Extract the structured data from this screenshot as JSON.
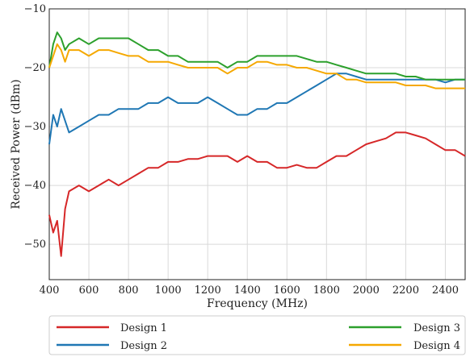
{
  "chart_data": {
    "type": "line",
    "xlabel": "Frequency (MHz)",
    "ylabel": "Received Power (dBm)",
    "xlim": [
      400,
      2500
    ],
    "ylim": [
      -56,
      -10
    ],
    "x_ticks": [
      400,
      600,
      800,
      1000,
      1200,
      1400,
      1600,
      1800,
      2000,
      2200,
      2400
    ],
    "y_ticks": [
      -50,
      -40,
      -30,
      -20,
      -10
    ],
    "y_tick_labels": [
      "−50",
      "−40",
      "−30",
      "−20",
      "−10"
    ],
    "grid": true,
    "legend_position": "bottom",
    "series": [
      {
        "name": "Design 1",
        "color": "#d62728",
        "x": [
          400,
          420,
          440,
          460,
          480,
          500,
          550,
          600,
          650,
          700,
          750,
          800,
          850,
          900,
          950,
          1000,
          1050,
          1100,
          1150,
          1200,
          1250,
          1300,
          1350,
          1400,
          1450,
          1500,
          1550,
          1600,
          1650,
          1700,
          1750,
          1800,
          1850,
          1900,
          1950,
          2000,
          2050,
          2100,
          2150,
          2200,
          2250,
          2300,
          2350,
          2400,
          2450,
          2500
        ],
        "values": [
          -45,
          -48,
          -46,
          -52,
          -44,
          -41,
          -40,
          -41,
          -40,
          -39,
          -40,
          -39,
          -38,
          -37,
          -37,
          -36,
          -36,
          -35.5,
          -35.5,
          -35,
          -35,
          -35,
          -36,
          -35,
          -36,
          -36,
          -37,
          -37,
          -36.5,
          -37,
          -37,
          -36,
          -35,
          -35,
          -34,
          -33,
          -32.5,
          -32,
          -31,
          -31,
          -31.5,
          -32,
          -33,
          -34,
          -34,
          -35
        ]
      },
      {
        "name": "Design 2",
        "color": "#1f77b4",
        "x": [
          400,
          420,
          440,
          460,
          480,
          500,
          550,
          600,
          650,
          700,
          750,
          800,
          850,
          900,
          950,
          1000,
          1050,
          1100,
          1150,
          1200,
          1250,
          1300,
          1350,
          1400,
          1450,
          1500,
          1550,
          1600,
          1650,
          1700,
          1750,
          1800,
          1850,
          1900,
          1950,
          2000,
          2050,
          2100,
          2150,
          2200,
          2250,
          2300,
          2350,
          2400,
          2450,
          2500
        ],
        "values": [
          -33,
          -28,
          -30,
          -27,
          -29,
          -31,
          -30,
          -29,
          -28,
          -28,
          -27,
          -27,
          -27,
          -26,
          -26,
          -25,
          -26,
          -26,
          -26,
          -25,
          -26,
          -27,
          -28,
          -28,
          -27,
          -27,
          -26,
          -26,
          -25,
          -24,
          -23,
          -22,
          -21,
          -21,
          -21.5,
          -22,
          -22,
          -22,
          -22,
          -22,
          -22,
          -22,
          -22,
          -22.5,
          -22,
          -22
        ]
      },
      {
        "name": "Design 3",
        "color": "#2ca02c",
        "x": [
          400,
          420,
          440,
          460,
          480,
          500,
          550,
          600,
          650,
          700,
          750,
          800,
          850,
          900,
          950,
          1000,
          1050,
          1100,
          1150,
          1200,
          1250,
          1300,
          1350,
          1400,
          1450,
          1500,
          1550,
          1600,
          1650,
          1700,
          1750,
          1800,
          1850,
          1900,
          1950,
          2000,
          2050,
          2100,
          2150,
          2200,
          2250,
          2300,
          2350,
          2400,
          2450,
          2500
        ],
        "values": [
          -20,
          -16,
          -14,
          -15,
          -17,
          -16,
          -15,
          -16,
          -15,
          -15,
          -15,
          -15,
          -16,
          -17,
          -17,
          -18,
          -18,
          -19,
          -19,
          -19,
          -19,
          -20,
          -19,
          -19,
          -18,
          -18,
          -18,
          -18,
          -18,
          -18.5,
          -19,
          -19,
          -19.5,
          -20,
          -20.5,
          -21,
          -21,
          -21,
          -21,
          -21.5,
          -21.5,
          -22,
          -22,
          -22,
          -22,
          -22
        ]
      },
      {
        "name": "Design 4",
        "color": "#f5a800",
        "x": [
          400,
          420,
          440,
          460,
          480,
          500,
          550,
          600,
          650,
          700,
          750,
          800,
          850,
          900,
          950,
          1000,
          1050,
          1100,
          1150,
          1200,
          1250,
          1300,
          1350,
          1400,
          1450,
          1500,
          1550,
          1600,
          1650,
          1700,
          1750,
          1800,
          1850,
          1900,
          1950,
          2000,
          2050,
          2100,
          2150,
          2200,
          2250,
          2300,
          2350,
          2400,
          2450,
          2500
        ],
        "values": [
          -20,
          -18,
          -16,
          -17,
          -19,
          -17,
          -17,
          -18,
          -17,
          -17,
          -17.5,
          -18,
          -18,
          -19,
          -19,
          -19,
          -19.5,
          -20,
          -20,
          -20,
          -20,
          -21,
          -20,
          -20,
          -19,
          -19,
          -19.5,
          -19.5,
          -20,
          -20,
          -20.5,
          -21,
          -21,
          -22,
          -22,
          -22.5,
          -22.5,
          -22.5,
          -22.5,
          -23,
          -23,
          -23,
          -23.5,
          -23.5,
          -23.5,
          -23.5
        ]
      }
    ]
  }
}
